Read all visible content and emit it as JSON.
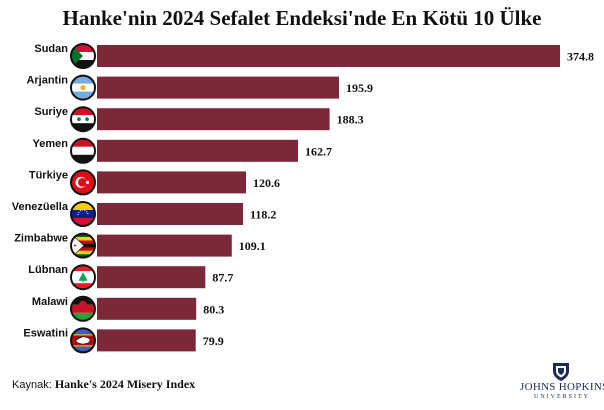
{
  "title": "Hanke'nin 2024 Sefalet Endeksi'nde En Kötü 10 Ülke",
  "source": {
    "prefix": "Kaynak:",
    "name": "Hanke's 2024 Misery Index"
  },
  "logo": {
    "name": "JOHNS HOPKINS",
    "sub": "UNIVERSITY"
  },
  "colors": {
    "bar": "#7b2838",
    "text": "#111111"
  },
  "chart_data": {
    "type": "bar",
    "orientation": "horizontal",
    "categories": [
      "Sudan",
      "Arjantin",
      "Suriye",
      "Yemen",
      "Türkiye",
      "Venezüella",
      "Zimbabwe",
      "Lübnan",
      "Malawi",
      "Eswatini"
    ],
    "values": [
      374.8,
      195.9,
      188.3,
      162.7,
      120.6,
      118.2,
      109.1,
      87.7,
      80.3,
      79.9
    ],
    "value_labels": [
      "374.8",
      "195.9",
      "188.3",
      "162.7",
      "120.6",
      "118.2",
      "109.1",
      "87.7",
      "80.3",
      "79.9"
    ],
    "flags": [
      "sudan-flag",
      "argentina-flag",
      "syria-flag",
      "yemen-flag",
      "turkey-flag",
      "venezuela-flag",
      "zimbabwe-flag",
      "lebanon-flag",
      "malawi-flag",
      "eswatini-flag"
    ],
    "xlim": [
      0,
      374.8
    ],
    "grid": false,
    "legend": "none"
  }
}
